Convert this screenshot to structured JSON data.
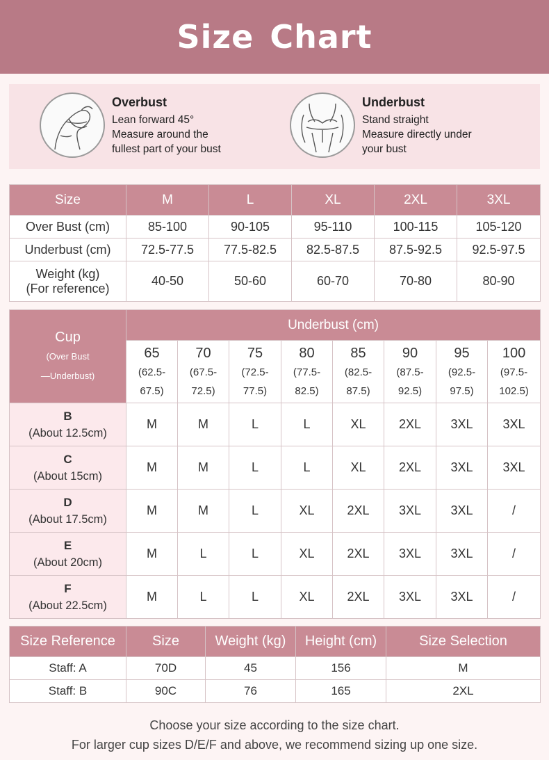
{
  "header": {
    "title": "Size  Chart"
  },
  "measure": [
    {
      "title": "Overbust",
      "lines": [
        "Lean forward 45°",
        "Measure around the",
        "fullest part of your bust"
      ]
    },
    {
      "title": "Underbust",
      "lines": [
        "Stand straight",
        "Measure directly under",
        "your bust"
      ]
    }
  ],
  "size_table": {
    "header": [
      "Size",
      "M",
      "L",
      "XL",
      "2XL",
      "3XL"
    ],
    "rows": [
      {
        "label": [
          "Over Bust (cm)"
        ],
        "values": [
          "85-100",
          "90-105",
          "95-110",
          "100-115",
          "105-120"
        ]
      },
      {
        "label": [
          "Underbust (cm)"
        ],
        "values": [
          "72.5-77.5",
          "77.5-82.5",
          "82.5-87.5",
          "87.5-92.5",
          "92.5-97.5"
        ]
      },
      {
        "label": [
          "Weight (kg)",
          "(For reference)"
        ],
        "values": [
          "40-50",
          "50-60",
          "60-70",
          "70-80",
          "80-90"
        ]
      }
    ]
  },
  "cup_table": {
    "cup_header": "Cup",
    "cup_sub": [
      "(Over Bust",
      "—Underbust)"
    ],
    "underbust_header": "Underbust (cm)",
    "underbust": [
      {
        "v": "65",
        "r": [
          "(62.5-",
          "67.5)"
        ]
      },
      {
        "v": "70",
        "r": [
          "(67.5-",
          "72.5)"
        ]
      },
      {
        "v": "75",
        "r": [
          "(72.5-",
          "77.5)"
        ]
      },
      {
        "v": "80",
        "r": [
          "(77.5-",
          "82.5)"
        ]
      },
      {
        "v": "85",
        "r": [
          "(82.5-",
          "87.5)"
        ]
      },
      {
        "v": "90",
        "r": [
          "(87.5-",
          "92.5)"
        ]
      },
      {
        "v": "95",
        "r": [
          "(92.5-",
          "97.5)"
        ]
      },
      {
        "v": "100",
        "r": [
          "(97.5-",
          "102.5)"
        ]
      }
    ],
    "rows": [
      {
        "cup": "B",
        "about": "(About 12.5cm)",
        "sizes": [
          "M",
          "M",
          "L",
          "L",
          "XL",
          "2XL",
          "3XL",
          "3XL"
        ]
      },
      {
        "cup": "C",
        "about": "(About 15cm)",
        "sizes": [
          "M",
          "M",
          "L",
          "L",
          "XL",
          "2XL",
          "3XL",
          "3XL"
        ]
      },
      {
        "cup": "D",
        "about": "(About 17.5cm)",
        "sizes": [
          "M",
          "M",
          "L",
          "XL",
          "2XL",
          "3XL",
          "3XL",
          "/"
        ]
      },
      {
        "cup": "E",
        "about": "(About 20cm)",
        "sizes": [
          "M",
          "L",
          "L",
          "XL",
          "2XL",
          "3XL",
          "3XL",
          "/"
        ]
      },
      {
        "cup": "F",
        "about": "(About 22.5cm)",
        "sizes": [
          "M",
          "L",
          "L",
          "XL",
          "2XL",
          "3XL",
          "3XL",
          "/"
        ]
      }
    ]
  },
  "reference_table": {
    "header": [
      "Size Reference",
      "Size",
      "Weight (kg)",
      "Height (cm)",
      "Size Selection"
    ],
    "rows": [
      [
        "Staff: A",
        "70D",
        "45",
        "156",
        "M"
      ],
      [
        "Staff: B",
        "90C",
        "76",
        "165",
        "2XL"
      ]
    ]
  },
  "notes": [
    "Choose your size according to the size chart.",
    "For larger cup sizes D/E/F and above, we recommend sizing up one size."
  ]
}
